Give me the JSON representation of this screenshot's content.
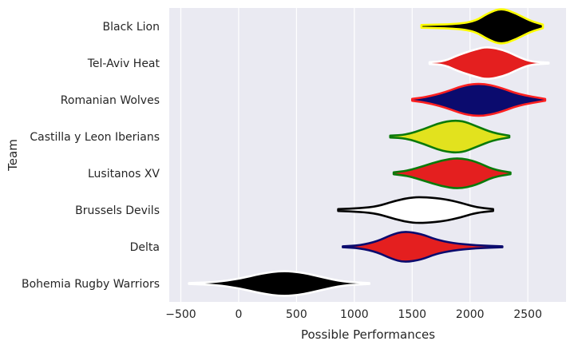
{
  "chart_data": {
    "type": "violin",
    "xlabel": "Possible Performances",
    "ylabel": "Team",
    "xlim": [
      -600,
      2830
    ],
    "xticks": [
      -500,
      0,
      500,
      1000,
      1500,
      2000,
      2500
    ],
    "xtick_labels": [
      "−500",
      "0",
      "500",
      "1000",
      "1500",
      "2000",
      "2500"
    ],
    "grid": true,
    "background": "#eaeaf2",
    "teams": [
      {
        "name": "Black Lion",
        "fill": "#000000",
        "edge": "#ffff00",
        "min": 1580,
        "max": 2630,
        "profile": [
          [
            1580,
            0.03
          ],
          [
            1900,
            0.05
          ],
          [
            2050,
            0.12
          ],
          [
            2150,
            0.28
          ],
          [
            2270,
            0.4
          ],
          [
            2400,
            0.28
          ],
          [
            2520,
            0.12
          ],
          [
            2630,
            0.04
          ]
        ]
      },
      {
        "name": "Tel-Aviv Heat",
        "fill": "#e41f1f",
        "edge": "#ffffff",
        "min": 1650,
        "max": 2680,
        "profile": [
          [
            1650,
            0.02
          ],
          [
            1780,
            0.04
          ],
          [
            1900,
            0.18
          ],
          [
            2050,
            0.3
          ],
          [
            2150,
            0.36
          ],
          [
            2300,
            0.28
          ],
          [
            2430,
            0.12
          ],
          [
            2530,
            0.03
          ],
          [
            2680,
            0.01
          ]
        ]
      },
      {
        "name": "Romanian Wolves",
        "fill": "#0b0b6e",
        "edge": "#ff2020",
        "min": 1500,
        "max": 2650,
        "profile": [
          [
            1500,
            0.02
          ],
          [
            1620,
            0.06
          ],
          [
            1780,
            0.16
          ],
          [
            1950,
            0.32
          ],
          [
            2100,
            0.36
          ],
          [
            2250,
            0.28
          ],
          [
            2420,
            0.12
          ],
          [
            2650,
            0.02
          ]
        ]
      },
      {
        "name": "Castilla y Leon Iberians",
        "fill": "#e2e21e",
        "edge": "#0a7a0a",
        "min": 1310,
        "max": 2340,
        "profile": [
          [
            1310,
            0.02
          ],
          [
            1450,
            0.04
          ],
          [
            1600,
            0.16
          ],
          [
            1760,
            0.32
          ],
          [
            1920,
            0.36
          ],
          [
            2060,
            0.22
          ],
          [
            2200,
            0.08
          ],
          [
            2340,
            0.02
          ]
        ]
      },
      {
        "name": "Lusitanos XV",
        "fill": "#e41f1f",
        "edge": "#0a7a0a",
        "min": 1340,
        "max": 2350,
        "profile": [
          [
            1340,
            0.02
          ],
          [
            1470,
            0.06
          ],
          [
            1600,
            0.16
          ],
          [
            1750,
            0.28
          ],
          [
            1900,
            0.34
          ],
          [
            2050,
            0.26
          ],
          [
            2200,
            0.08
          ],
          [
            2350,
            0.02
          ]
        ]
      },
      {
        "name": "Brussels Devils",
        "fill": "#ffffff",
        "edge": "#000000",
        "min": 860,
        "max": 2200,
        "profile": [
          [
            860,
            0.02
          ],
          [
            1050,
            0.04
          ],
          [
            1200,
            0.08
          ],
          [
            1350,
            0.2
          ],
          [
            1500,
            0.28
          ],
          [
            1620,
            0.28
          ],
          [
            1780,
            0.24
          ],
          [
            1920,
            0.16
          ],
          [
            2050,
            0.06
          ],
          [
            2200,
            0.02
          ]
        ]
      },
      {
        "name": "Delta",
        "fill": "#e41f1f",
        "edge": "#0b0b6e",
        "min": 900,
        "max": 2280,
        "profile": [
          [
            900,
            0.01
          ],
          [
            1050,
            0.03
          ],
          [
            1200,
            0.12
          ],
          [
            1320,
            0.26
          ],
          [
            1430,
            0.34
          ],
          [
            1580,
            0.28
          ],
          [
            1700,
            0.16
          ],
          [
            1850,
            0.08
          ],
          [
            2050,
            0.03
          ],
          [
            2280,
            0.01
          ]
        ]
      },
      {
        "name": "Bohemia Rugby Warriors",
        "fill": "#000000",
        "edge": "#ffffff",
        "min": -430,
        "max": 1130,
        "profile": [
          [
            -430,
            0.01
          ],
          [
            -200,
            0.03
          ],
          [
            0,
            0.1
          ],
          [
            200,
            0.22
          ],
          [
            380,
            0.28
          ],
          [
            550,
            0.24
          ],
          [
            720,
            0.14
          ],
          [
            900,
            0.04
          ],
          [
            1130,
            0.01
          ]
        ]
      }
    ]
  }
}
